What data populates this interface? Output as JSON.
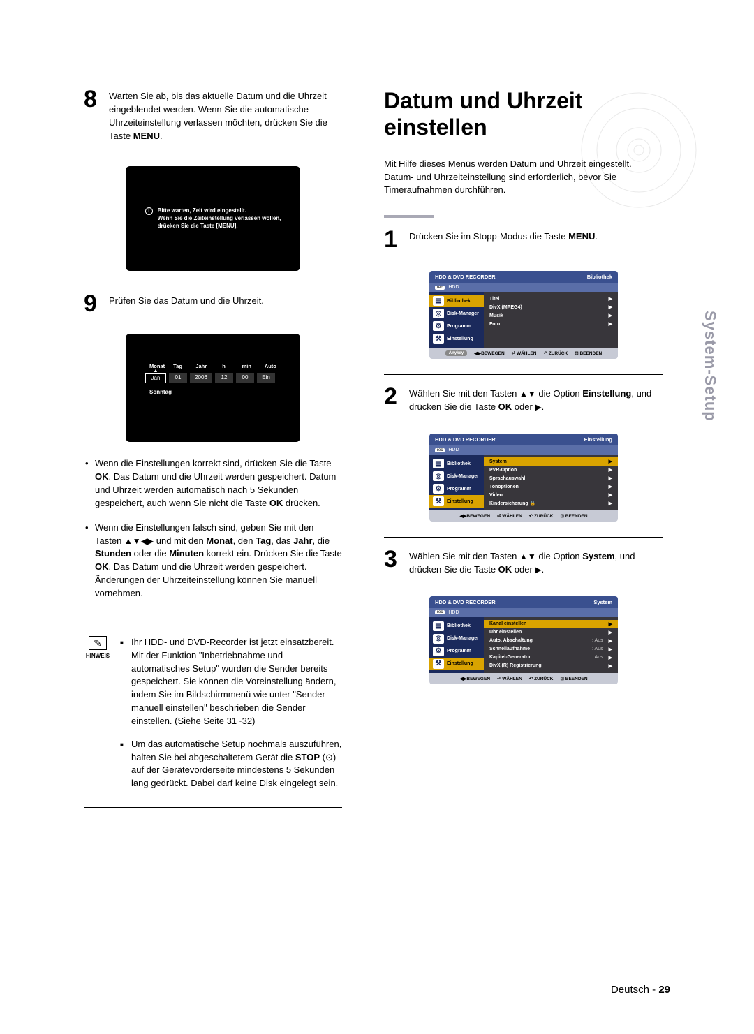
{
  "left": {
    "step8": {
      "num": "8",
      "text_pre": "Warten Sie ab, bis das aktuelle Datum und die Uhrzeit eingeblendet werden. Wenn Sie die automatische Uhrzeiteinstellung verlassen möchten, drücken Sie die Taste ",
      "text_bold": "MENU",
      "text_post": "."
    },
    "black_screen": {
      "line1": "Bitte warten, Zeit wird eingestellt.",
      "line2": "Wenn Sie die Zeiteinstellung verlassen wollen,",
      "line3": "drücken Sie die Taste [MENU]."
    },
    "step9": {
      "num": "9",
      "text": "Prüfen Sie das Datum und die Uhrzeit."
    },
    "clock": {
      "heads": [
        "Monat",
        "Tag",
        "Jahr",
        "h",
        "min",
        "Auto"
      ],
      "cells": [
        "Jan",
        "01",
        "2006",
        "12",
        "00",
        "Ein"
      ],
      "day": "Sonntag"
    },
    "bullets": [
      {
        "pre": "Wenn die Einstellungen korrekt sind, drücken Sie die Taste ",
        "b1": "OK",
        "mid": ". Das Datum und die Uhrzeit werden gespeichert. Datum und Uhrzeit werden automatisch nach 5 Sekunden gespeichert, auch wenn Sie nicht die Taste ",
        "b2": "OK",
        "post": " drücken."
      },
      {
        "pre": "Wenn die Einstellungen falsch sind, geben Sie mit den Tasten ",
        "arrows1": "▲▼◀▶",
        "mid1": " und mit den ",
        "b1": "Monat",
        "mid2": ", den ",
        "b2": "Tag",
        "mid3": ", das ",
        "b3": "Jahr",
        "mid4": ", die ",
        "b4": "Stunden",
        "mid5": " oder die ",
        "b5": "Minuten",
        "mid6": " korrekt ein. Drücken Sie die Taste ",
        "b6": "OK",
        "post": ". Das Datum und die Uhrzeit werden gespeichert. Änderungen der Uhrzeiteinstellung können Sie manuell vornehmen."
      }
    ],
    "note_label": "HINWEIS",
    "notes": [
      "Ihr HDD- und DVD-Recorder ist jetzt einsatzbereit. Mit der Funktion \"Inbetriebnahme und automatisches Setup\" wurden die Sender bereits gespeichert. Sie können die Voreinstellung ändern, indem Sie im Bildschirmmenü wie unter \"Sender manuell einstellen\" beschrieben die Sender einstellen. (Siehe Seite 31~32)",
      {
        "pre": "Um das automatische Setup nochmals auszuführen, halten Sie bei abgeschaltetem Gerät die ",
        "b": "STOP",
        "sym": " (⊙) ",
        "post": "auf der Gerätevorderseite mindestens 5 Sekunden lang gedrückt. Dabei darf keine Disk eingelegt sein."
      }
    ]
  },
  "right": {
    "title": "Datum und Uhrzeit einstellen",
    "intro": "Mit Hilfe dieses Menüs werden Datum und Uhrzeit eingestellt.\nDatum- und Uhrzeiteinstellung sind erforderlich, bevor Sie Timeraufnahmen durchführen.",
    "step1": {
      "num": "1",
      "pre": "Drücken Sie im Stopp-Modus die Taste ",
      "b": "MENU",
      "post": "."
    },
    "step2": {
      "num": "2",
      "pre": "Wählen Sie mit den Tasten ",
      "arrows": "▲▼",
      "mid": " die Option ",
      "b1": "Einstellung",
      "mid2": ", und drücken Sie die Taste ",
      "b2": "OK",
      "post": " oder ",
      "arrow2": "▶",
      "post2": "."
    },
    "step3": {
      "num": "3",
      "pre": "Wählen Sie mit den Tasten ",
      "arrows": "▲▼",
      "mid": " die Option ",
      "b1": "System",
      "mid2": ", und drücken Sie die Taste ",
      "b2": "OK",
      "post": " oder ",
      "arrow2": "▶",
      "post2": "."
    },
    "osd_common": {
      "title": "HDD & DVD RECORDER",
      "hdd": "HDD",
      "side": [
        "Bibliothek",
        "Disk-Manager",
        "Programm",
        "Einstellung"
      ],
      "foot_key": "Anykey",
      "foot": [
        "◀▶BEWEGEN",
        "⏎ WÄHLEN",
        "↶ ZURÜCK",
        "⊡ BEENDEN"
      ]
    },
    "osd1": {
      "context": "Bibliothek",
      "rows": [
        {
          "l": "Titel",
          "r": "▶"
        },
        {
          "l": "DivX (MPEG4)",
          "r": "▶"
        },
        {
          "l": "Musik",
          "r": "▶"
        },
        {
          "l": "Foto",
          "r": "▶"
        }
      ]
    },
    "osd2": {
      "context": "Einstellung",
      "rows": [
        {
          "l": "System",
          "r": "▶",
          "sel": true
        },
        {
          "l": "PVR-Option",
          "r": "▶"
        },
        {
          "l": "Sprachauswahl",
          "r": "▶"
        },
        {
          "l": "Tonoptionen",
          "r": "▶"
        },
        {
          "l": "Video",
          "r": "▶"
        },
        {
          "l": "Kindersicherung 🔒",
          "r": "▶"
        }
      ]
    },
    "osd3": {
      "context": "System",
      "rows": [
        {
          "l": "Kanal einstellen",
          "r": "▶",
          "sel": true
        },
        {
          "l": "Uhr einstellen",
          "r": "▶"
        },
        {
          "l": "Auto. Abschaltung",
          "v": ": Aus",
          "r": "▶"
        },
        {
          "l": "Schnellaufnahme",
          "v": ": Aus",
          "r": "▶"
        },
        {
          "l": "Kapitel-Generator",
          "v": ": Aus",
          "r": "▶"
        },
        {
          "l": "DivX (R) Registrierung",
          "r": "▶"
        }
      ]
    }
  },
  "vtab": "System-Setup",
  "footer": {
    "lang": "Deutsch - ",
    "page": "29"
  }
}
